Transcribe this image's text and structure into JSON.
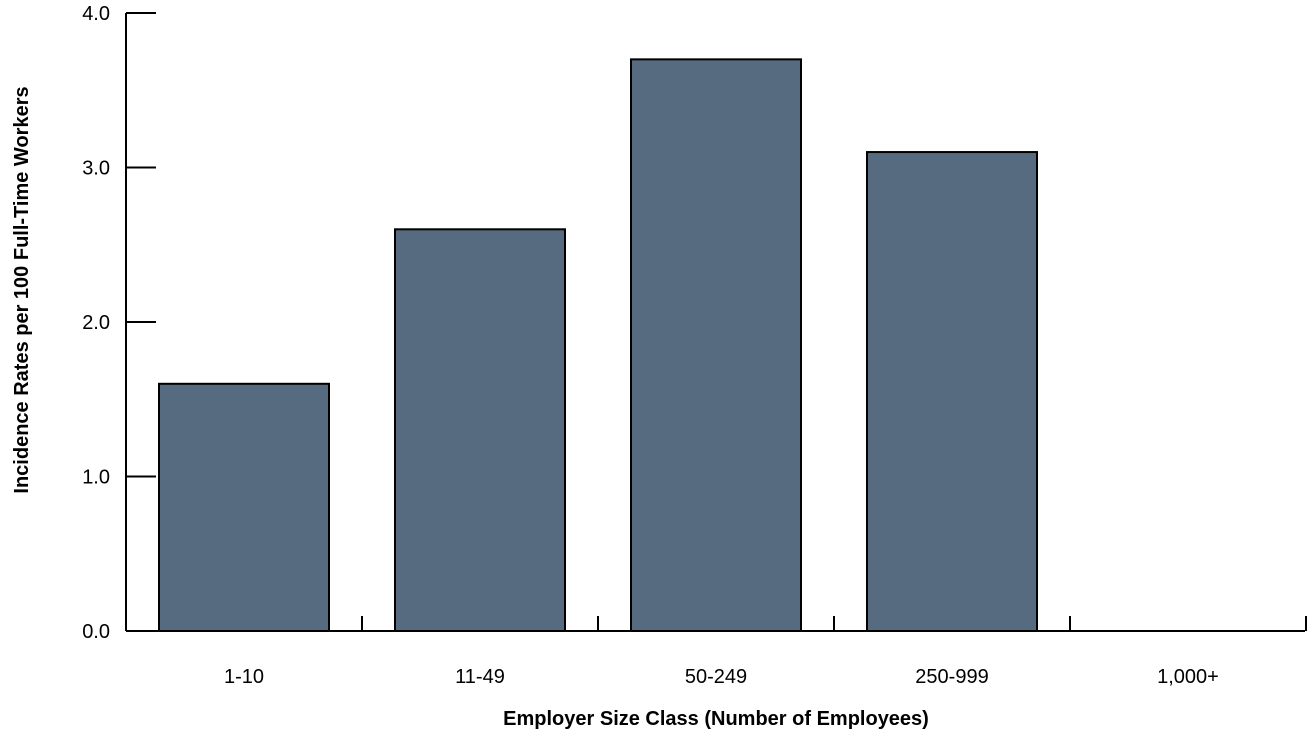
{
  "chart_data": {
    "type": "bar",
    "title": "",
    "xlabel": "Employer Size Class (Number of Employees)",
    "ylabel": "Incidence Rates per 100 Full-Time Workers",
    "categories": [
      "1-10",
      "11-49",
      "50-249",
      "250-999",
      "1,000+"
    ],
    "values": [
      1.6,
      2.6,
      3.7,
      3.1,
      0.0
    ],
    "ylim": [
      0,
      4.0
    ],
    "yticks": [
      "0.0",
      "1.0",
      "2.0",
      "3.0",
      "4.0"
    ],
    "grid": false,
    "legend": "none",
    "bar_color": "#566b80",
    "bar_stroke": "#000000"
  }
}
